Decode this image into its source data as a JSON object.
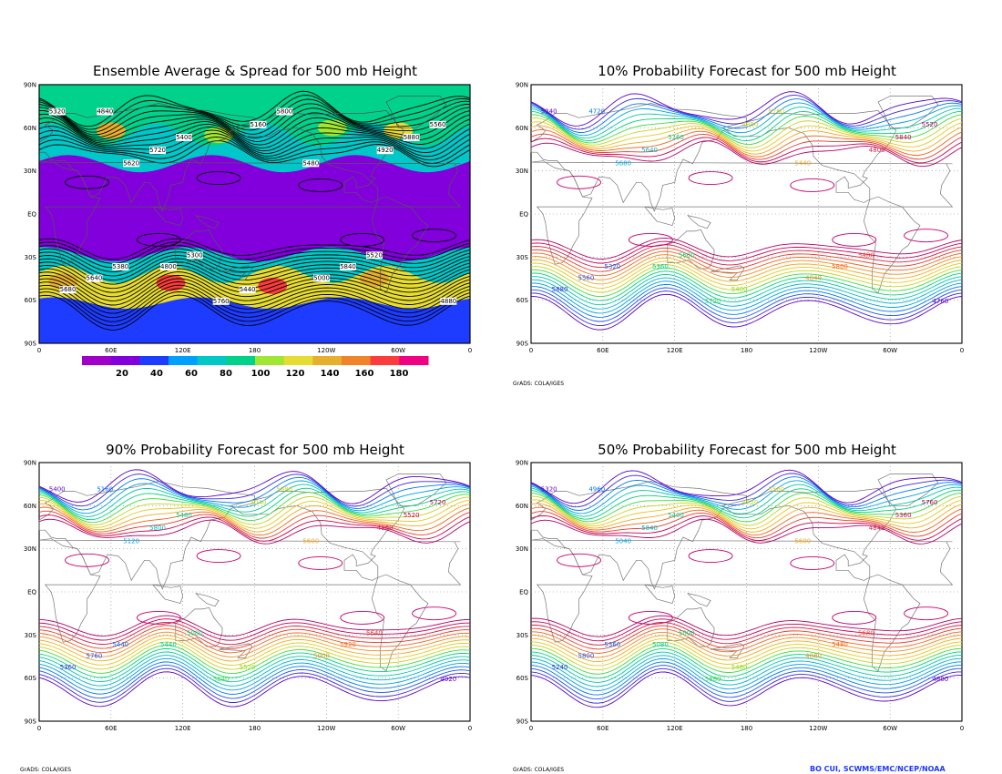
{
  "panels": [
    {
      "id": "spread",
      "title": "Ensemble Average & Spread for 500 mb Height"
    },
    {
      "id": "p10",
      "title": "10% Probability Forecast for 500 mb Height"
    },
    {
      "id": "p90",
      "title": "90% Probability Forecast for 500 mb Height"
    },
    {
      "id": "p50",
      "title": "50% Probability Forecast for 500 mb Height"
    }
  ],
  "lat_ticks": [
    "90N",
    "60N",
    "30N",
    "EQ",
    "30S",
    "60S",
    "90S"
  ],
  "lon_ticks": [
    "0",
    "60E",
    "120E",
    "180",
    "120W",
    "60W",
    "0"
  ],
  "colorbar": {
    "labels": [
      "20",
      "40",
      "60",
      "80",
      "100",
      "120",
      "140",
      "160",
      "180"
    ],
    "colors": [
      "#a000c8",
      "#8200dc",
      "#1e3cff",
      "#00a0ff",
      "#00c8c8",
      "#00d28c",
      "#a0e632",
      "#e6dc32",
      "#e6af2d",
      "#f08228",
      "#fa3c3c",
      "#f00082"
    ]
  },
  "contour_levels": [
    "4720",
    "4760",
    "4800",
    "4840",
    "4880",
    "4920",
    "4960",
    "5000",
    "5040",
    "5080",
    "5120",
    "5160",
    "5200",
    "5240",
    "5280",
    "5320",
    "5360",
    "5400",
    "5440",
    "5480",
    "5520",
    "5560",
    "5600",
    "5640",
    "5680",
    "5720",
    "5760",
    "5800",
    "5840",
    "5880",
    "5920"
  ],
  "spread_labels": [
    "5320",
    "5380",
    "5400",
    "5440",
    "5480",
    "5520",
    "5560",
    "5640",
    "5720",
    "5760",
    "5800",
    "5840",
    "5880",
    "5680",
    "5620",
    "5300",
    "5160",
    "5000",
    "4920",
    "4880",
    "4840",
    "4800"
  ],
  "p10_labels": [
    "5240",
    "5320",
    "5360",
    "5400",
    "5440",
    "5480",
    "5520",
    "5560",
    "5640",
    "5720",
    "5760",
    "5800",
    "5840",
    "5880",
    "5680",
    "5600",
    "4880",
    "4840",
    "4800",
    "4760",
    "4720",
    "5360"
  ],
  "p90_labels": [
    "5400",
    "5440",
    "5480",
    "5520",
    "5600",
    "5640",
    "5720",
    "5760",
    "5800",
    "5840",
    "5880",
    "5920",
    "5520",
    "5360",
    "5120",
    "5080",
    "5040",
    "5000",
    "4960",
    "4920",
    "5160",
    "5440"
  ],
  "p50_labels": [
    "5320",
    "5360",
    "5400",
    "5480",
    "5600",
    "5680",
    "5760",
    "5800",
    "5840",
    "5880",
    "5560",
    "5480",
    "5360",
    "5240",
    "5040",
    "5000",
    "4920",
    "4880",
    "4840",
    "4800",
    "4960",
    "5080"
  ],
  "grads_footer": "GrADS: COLA/IGES",
  "credit": "BO CUI, SCWMS/EMC/NCEP/NOAA"
}
